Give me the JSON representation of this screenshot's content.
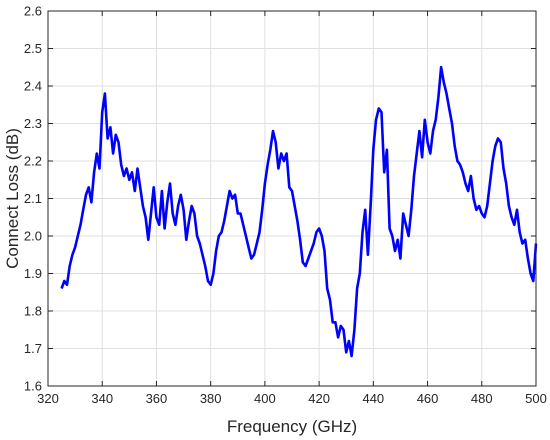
{
  "chart_data": {
    "type": "line",
    "title": "",
    "xlabel": "Frequency (GHz)",
    "ylabel": "Connect Loss (dB)",
    "xlim": [
      320,
      500
    ],
    "ylim": [
      1.6,
      2.6
    ],
    "xticks": [
      320,
      340,
      360,
      380,
      400,
      420,
      440,
      460,
      480,
      500
    ],
    "yticks": [
      1.6,
      1.7,
      1.8,
      1.9,
      2.0,
      2.1,
      2.2,
      2.3,
      2.4,
      2.5,
      2.6
    ],
    "xtick_labels": [
      "320",
      "340",
      "360",
      "380",
      "400",
      "420",
      "440",
      "460",
      "480",
      "500"
    ],
    "ytick_labels": [
      "1.6",
      "1.7",
      "1.8",
      "1.9",
      "2.0",
      "2.1",
      "2.2",
      "2.3",
      "2.4",
      "2.5",
      "2.6"
    ],
    "grid": true,
    "legend": "none",
    "series": [
      {
        "color": "#0000ff",
        "x": [
          325,
          326,
          327,
          328,
          329,
          330,
          331,
          332,
          333,
          334,
          335,
          336,
          337,
          338,
          339,
          340,
          341,
          342,
          343,
          344,
          345,
          346,
          347,
          348,
          349,
          350,
          351,
          352,
          353,
          354,
          355,
          356,
          357,
          358,
          359,
          360,
          361,
          362,
          363,
          364,
          365,
          366,
          367,
          368,
          369,
          370,
          371,
          372,
          373,
          374,
          375,
          376,
          377,
          378,
          379,
          380,
          381,
          382,
          383,
          384,
          385,
          386,
          387,
          388,
          389,
          390,
          391,
          392,
          393,
          394,
          395,
          396,
          397,
          398,
          399,
          400,
          401,
          402,
          403,
          404,
          405,
          406,
          407,
          408,
          409,
          410,
          411,
          412,
          413,
          414,
          415,
          416,
          417,
          418,
          419,
          420,
          421,
          422,
          423,
          424,
          425,
          426,
          427,
          428,
          429,
          430,
          431,
          432,
          433,
          434,
          435,
          436,
          437,
          438,
          439,
          440,
          441,
          442,
          443,
          444,
          445,
          446,
          447,
          448,
          449,
          450,
          451,
          452,
          453,
          454,
          455,
          456,
          457,
          458,
          459,
          460,
          461,
          462,
          463,
          464,
          465,
          466,
          467,
          468,
          469,
          470,
          471,
          472,
          473,
          474,
          475,
          476,
          477,
          478,
          479,
          480,
          481,
          482,
          483,
          484,
          485,
          486,
          487,
          488,
          489,
          490,
          491,
          492,
          493,
          494,
          495,
          496,
          497,
          498,
          499,
          500
        ],
        "y": [
          1.86,
          1.88,
          1.87,
          1.92,
          1.95,
          1.97,
          2.0,
          2.03,
          2.07,
          2.11,
          2.13,
          2.09,
          2.17,
          2.22,
          2.18,
          2.33,
          2.38,
          2.26,
          2.29,
          2.22,
          2.27,
          2.25,
          2.19,
          2.16,
          2.18,
          2.15,
          2.17,
          2.12,
          2.18,
          2.13,
          2.08,
          2.05,
          1.99,
          2.06,
          2.13,
          2.05,
          2.03,
          2.12,
          2.02,
          2.09,
          2.14,
          2.06,
          2.03,
          2.08,
          2.11,
          2.07,
          1.99,
          2.04,
          2.08,
          2.06,
          2.0,
          1.98,
          1.95,
          1.92,
          1.88,
          1.87,
          1.9,
          1.96,
          2.0,
          2.01,
          2.04,
          2.08,
          2.12,
          2.1,
          2.11,
          2.06,
          2.06,
          2.03,
          2.0,
          1.97,
          1.94,
          1.95,
          1.98,
          2.01,
          2.07,
          2.14,
          2.19,
          2.23,
          2.28,
          2.25,
          2.18,
          2.22,
          2.2,
          2.22,
          2.13,
          2.12,
          2.08,
          2.04,
          1.99,
          1.93,
          1.92,
          1.94,
          1.96,
          1.98,
          2.01,
          2.02,
          2.0,
          1.96,
          1.86,
          1.83,
          1.77,
          1.77,
          1.73,
          1.76,
          1.75,
          1.69,
          1.72,
          1.68,
          1.75,
          1.86,
          1.9,
          2.01,
          2.07,
          1.95,
          2.08,
          2.23,
          2.31,
          2.34,
          2.33,
          2.17,
          2.23,
          2.02,
          2.0,
          1.96,
          1.99,
          1.94,
          2.06,
          2.03,
          2.0,
          2.07,
          2.16,
          2.22,
          2.28,
          2.21,
          2.31,
          2.25,
          2.22,
          2.28,
          2.31,
          2.37,
          2.45,
          2.41,
          2.38,
          2.34,
          2.3,
          2.24,
          2.2,
          2.19,
          2.17,
          2.14,
          2.12,
          2.16,
          2.1,
          2.07,
          2.08,
          2.06,
          2.05,
          2.08,
          2.14,
          2.2,
          2.24,
          2.26,
          2.25,
          2.18,
          2.14,
          2.08,
          2.05,
          2.03,
          2.07,
          2.01,
          1.98,
          1.99,
          1.94,
          1.9,
          1.88,
          1.98
        ]
      }
    ]
  }
}
